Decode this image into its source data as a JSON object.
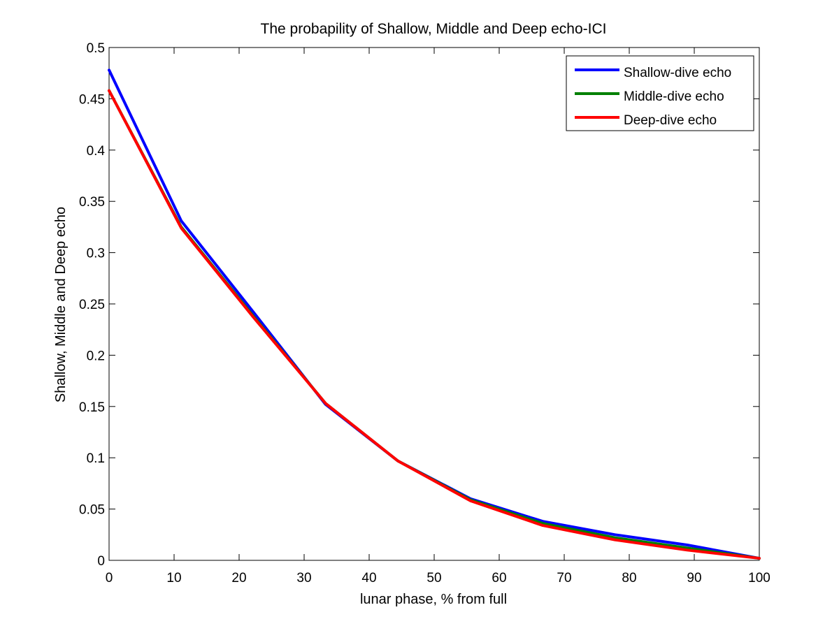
{
  "chart_data": {
    "type": "line",
    "title": "The probapility of Shallow, Middle and Deep echo-ICI",
    "xlabel": "lunar phase, % from full",
    "ylabel": "Shallow, Middle and Deep echo",
    "xlim": [
      0,
      100
    ],
    "ylim": [
      0,
      0.5
    ],
    "x_ticks": [
      0,
      10,
      20,
      30,
      40,
      50,
      60,
      70,
      80,
      90,
      100
    ],
    "x_tick_labels": [
      "0",
      "10",
      "20",
      "30",
      "40",
      "50",
      "60",
      "70",
      "80",
      "90",
      "100"
    ],
    "y_ticks": [
      0,
      0.05,
      0.1,
      0.15,
      0.2,
      0.25,
      0.3,
      0.35,
      0.4,
      0.45,
      0.5
    ],
    "y_tick_labels": [
      "0",
      "0.05",
      "0.1",
      "0.15",
      "0.2",
      "0.25",
      "0.3",
      "0.35",
      "0.4",
      "0.45",
      "0.5"
    ],
    "grid": false,
    "legend_position": "top-right",
    "x": [
      0,
      11.1,
      22.2,
      33.3,
      44.4,
      55.6,
      66.7,
      77.8,
      88.9,
      100
    ],
    "series": [
      {
        "name": "Shallow-dive echo",
        "color": "#0000ff",
        "values": [
          0.478,
          0.331,
          0.242,
          0.152,
          0.097,
          0.06,
          0.038,
          0.025,
          0.015,
          0.002
        ]
      },
      {
        "name": "Middle-dive echo",
        "color": "#008000",
        "values": [
          0.458,
          0.325,
          0.238,
          0.153,
          0.097,
          0.059,
          0.036,
          0.022,
          0.012,
          0.002
        ]
      },
      {
        "name": "Deep-dive echo",
        "color": "#ff0000",
        "values": [
          0.458,
          0.324,
          0.237,
          0.153,
          0.097,
          0.058,
          0.034,
          0.02,
          0.01,
          0.002
        ]
      }
    ]
  }
}
